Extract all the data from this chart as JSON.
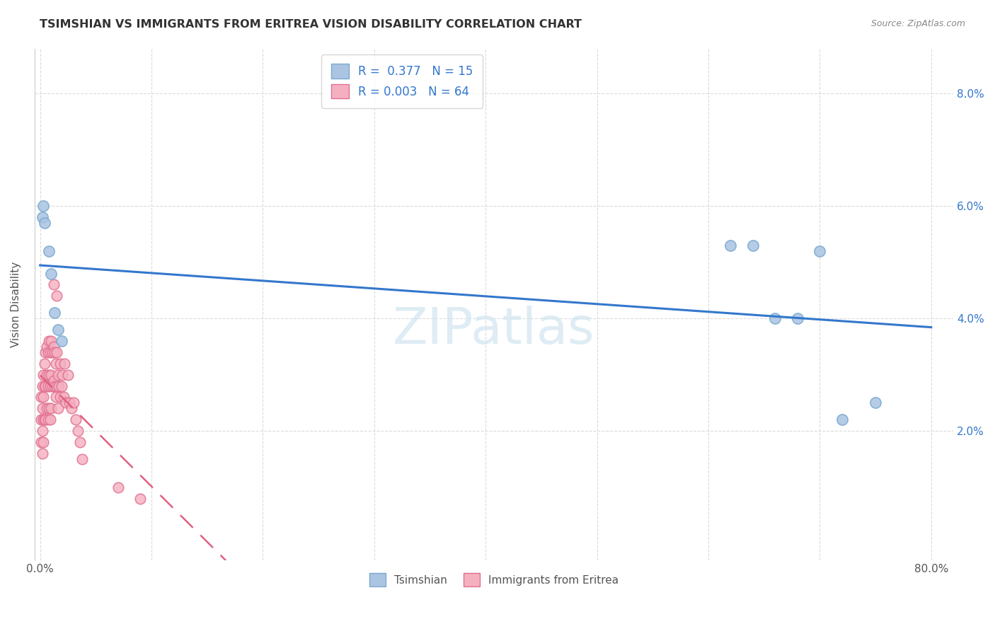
{
  "title": "TSIMSHIAN VS IMMIGRANTS FROM ERITREA VISION DISABILITY CORRELATION CHART",
  "source": "Source: ZipAtlas.com",
  "ylabel": "Vision Disability",
  "y_tick_positions": [
    0.02,
    0.04,
    0.06,
    0.08
  ],
  "y_tick_labels": [
    "2.0%",
    "4.0%",
    "6.0%",
    "8.0%"
  ],
  "x_tick_positions": [
    0.0,
    0.1,
    0.2,
    0.3,
    0.4,
    0.5,
    0.6,
    0.7,
    0.8
  ],
  "x_tick_labels": [
    "0.0%",
    "",
    "",
    "",
    "",
    "",
    "",
    "",
    "80.0%"
  ],
  "xlim": [
    -0.005,
    0.82
  ],
  "ylim": [
    -0.003,
    0.088
  ],
  "legend1_label": "R =  0.377   N = 15",
  "legend2_label": "R = 0.003   N = 64",
  "scatter1_color": "#aac4e2",
  "scatter1_edge": "#7aaad0",
  "scatter2_color": "#f5b0c0",
  "scatter2_edge": "#e07090",
  "line1_color": "#3377cc",
  "line2_color": "#e06080",
  "watermark": "ZIPatlas",
  "watermark_color": "#d0e4f0",
  "legend_bottom_labels": [
    "Tsimshian",
    "Immigrants from Eritrea"
  ],
  "tsimshian_x": [
    0.002,
    0.003,
    0.004,
    0.008,
    0.01,
    0.013,
    0.016,
    0.019,
    0.62,
    0.64,
    0.66,
    0.68,
    0.7,
    0.72,
    0.75
  ],
  "tsimshian_y": [
    0.058,
    0.06,
    0.057,
    0.052,
    0.048,
    0.041,
    0.038,
    0.036,
    0.053,
    0.053,
    0.04,
    0.04,
    0.052,
    0.022,
    0.025
  ],
  "eritrea_x": [
    0.001,
    0.001,
    0.001,
    0.002,
    0.002,
    0.002,
    0.002,
    0.003,
    0.003,
    0.003,
    0.003,
    0.004,
    0.004,
    0.004,
    0.005,
    0.005,
    0.005,
    0.006,
    0.006,
    0.006,
    0.007,
    0.007,
    0.007,
    0.008,
    0.008,
    0.008,
    0.009,
    0.009,
    0.009,
    0.01,
    0.01,
    0.01,
    0.011,
    0.011,
    0.012,
    0.012,
    0.013,
    0.013,
    0.014,
    0.014,
    0.015,
    0.015,
    0.016,
    0.016,
    0.017,
    0.018,
    0.018,
    0.019,
    0.02,
    0.021,
    0.022,
    0.023,
    0.025,
    0.026,
    0.028,
    0.03,
    0.032,
    0.034,
    0.036,
    0.038,
    0.012,
    0.015,
    0.07,
    0.09
  ],
  "eritrea_y": [
    0.026,
    0.022,
    0.018,
    0.028,
    0.024,
    0.02,
    0.016,
    0.03,
    0.026,
    0.022,
    0.018,
    0.032,
    0.028,
    0.022,
    0.034,
    0.028,
    0.022,
    0.035,
    0.03,
    0.024,
    0.034,
    0.028,
    0.022,
    0.036,
    0.03,
    0.024,
    0.034,
    0.028,
    0.022,
    0.036,
    0.03,
    0.024,
    0.034,
    0.028,
    0.035,
    0.029,
    0.034,
    0.028,
    0.032,
    0.026,
    0.034,
    0.028,
    0.03,
    0.024,
    0.028,
    0.032,
    0.026,
    0.028,
    0.03,
    0.026,
    0.032,
    0.025,
    0.03,
    0.025,
    0.024,
    0.025,
    0.022,
    0.02,
    0.018,
    0.015,
    0.046,
    0.044,
    0.01,
    0.008
  ]
}
